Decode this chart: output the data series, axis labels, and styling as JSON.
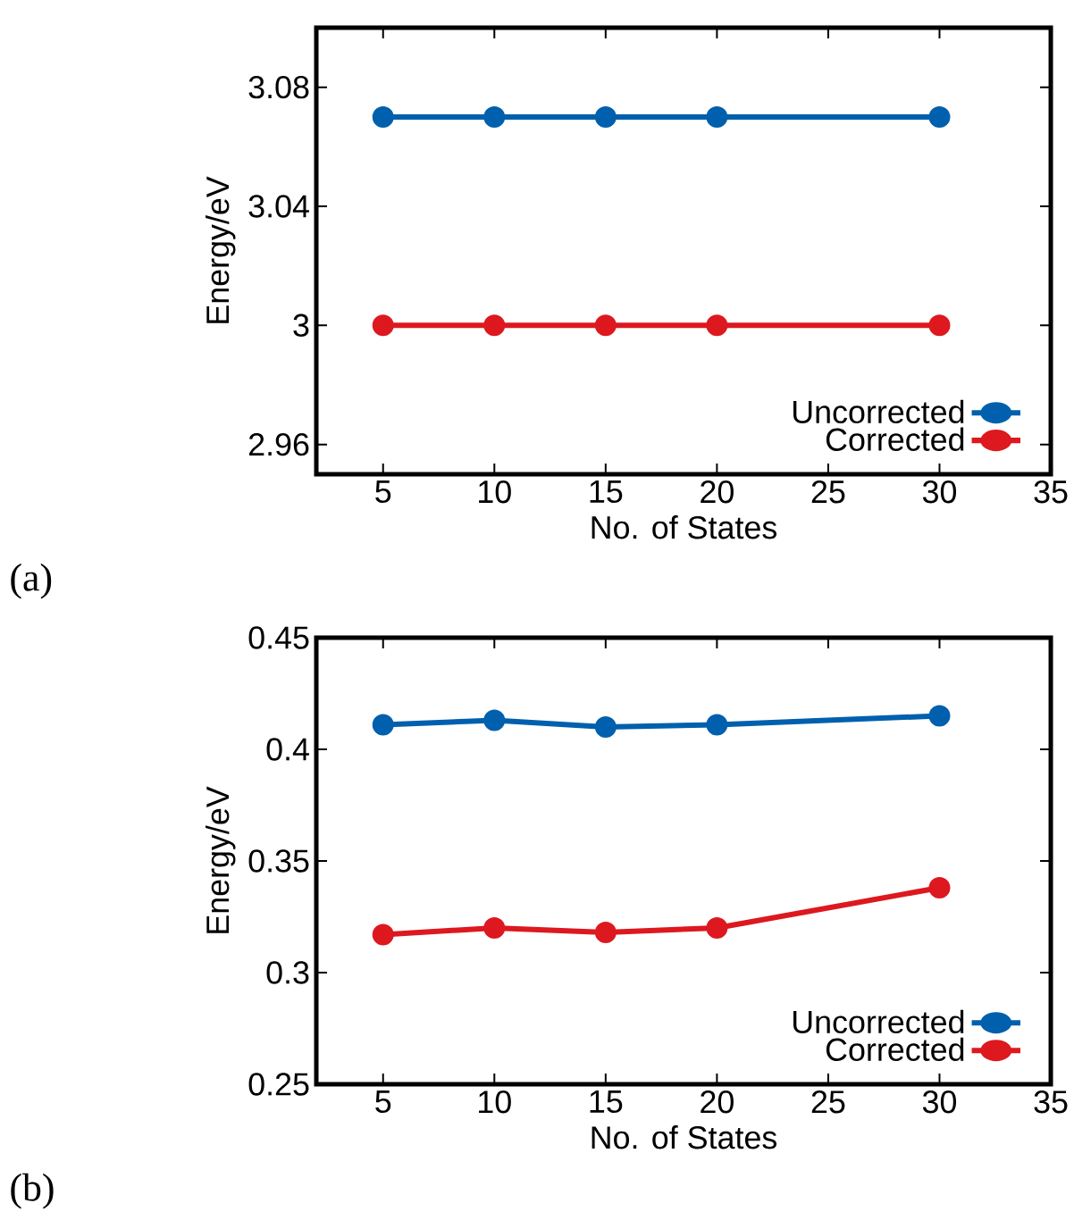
{
  "chart_data": [
    {
      "type": "line",
      "xlabel": "No. of States",
      "ylabel": "Energy/eV",
      "annotations": [
        "(a)"
      ],
      "x": [
        5,
        10,
        15,
        20,
        30
      ],
      "series": [
        {
          "name": "Uncorrected",
          "color": "#0060ad",
          "values": [
            3.07,
            3.07,
            3.07,
            3.07,
            3.07
          ]
        },
        {
          "name": "Corrected",
          "color": "#dd181f",
          "values": [
            3.0,
            3.0,
            3.0,
            3.0,
            3.0
          ]
        }
      ],
      "xlim": [
        2,
        35
      ],
      "xticks": [
        5,
        10,
        15,
        20,
        25,
        30,
        35
      ],
      "ylim": [
        2.95,
        3.1
      ],
      "yticks": [
        2.96,
        3,
        3.04,
        3.08
      ],
      "legend": "bottom right",
      "marker": "circle",
      "line_style": "solid"
    },
    {
      "type": "line",
      "xlabel": "No. of States",
      "ylabel": "Energy/eV",
      "annotations": [
        "(b)"
      ],
      "x": [
        5,
        10,
        15,
        20,
        30
      ],
      "series": [
        {
          "name": "Uncorrected",
          "color": "#0060ad",
          "values": [
            0.411,
            0.413,
            0.41,
            0.411,
            0.415
          ]
        },
        {
          "name": "Corrected",
          "color": "#dd181f",
          "values": [
            0.317,
            0.32,
            0.318,
            0.32,
            0.338
          ]
        }
      ],
      "xlim": [
        2,
        35
      ],
      "xticks": [
        5,
        10,
        15,
        20,
        25,
        30,
        35
      ],
      "ylim": [
        0.25,
        0.45
      ],
      "yticks": [
        0.25,
        0.3,
        0.35,
        0.4,
        0.45
      ],
      "legend": "bottom right",
      "marker": "circle",
      "line_style": "solid"
    }
  ]
}
